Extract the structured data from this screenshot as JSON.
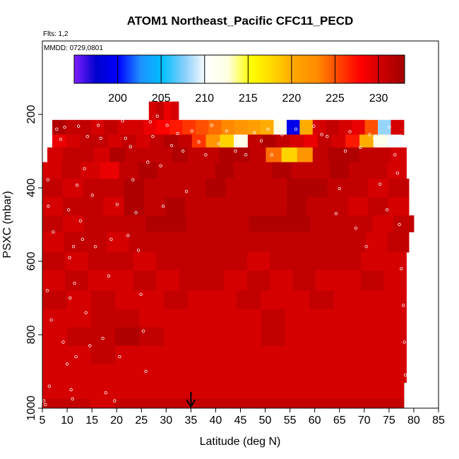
{
  "chart_data": {
    "type": "heatmap",
    "title": "ATOM1 Northeast_Pacific CFC11_PECD",
    "subtitle_flights": "Flts: 1,2",
    "subtitle_dates": "MMDD: 0729,0801",
    "xlabel": "Latitude (deg N)",
    "ylabel": "PSXC (mbar)",
    "xlim": [
      5,
      85
    ],
    "ylim": [
      1000,
      0
    ],
    "x_ticks": [
      5,
      10,
      15,
      20,
      25,
      30,
      35,
      40,
      45,
      50,
      55,
      60,
      65,
      70,
      75,
      80,
      85
    ],
    "y_ticks": [
      200,
      400,
      600,
      800,
      1000
    ],
    "colorbar": {
      "range": [
        195,
        233
      ],
      "ticks": [
        200,
        205,
        210,
        215,
        220,
        225,
        230
      ],
      "colors": [
        "#7f1fff",
        "#0000cd",
        "#0000ff",
        "#1e90ff",
        "#00bfff",
        "#87cefa",
        "#ffffff",
        "#ffffe0",
        "#ffff00",
        "#ffd700",
        "#ffa500",
        "#ff8c00",
        "#ff4500",
        "#ff0000",
        "#cc0000",
        "#a00000"
      ]
    },
    "marker_latitude": 35,
    "layers": [
      {
        "p_top": 165,
        "p_bot": 215,
        "lat_min": 26.5,
        "lat_max": 32.5,
        "values": [
          230,
          231,
          229,
          230
        ]
      },
      {
        "p_top": 215,
        "p_bot": 255,
        "lat_min": 7,
        "lat_max": 78,
        "values": [
          232,
          231,
          231,
          230,
          231,
          230,
          230,
          229,
          228,
          227,
          226,
          225,
          224,
          223,
          222,
          221,
          220,
          212,
          199,
          220,
          230,
          231,
          230,
          229,
          225,
          208,
          230
        ]
      },
      {
        "p_top": 255,
        "p_bot": 290,
        "lat_min": 7,
        "lat_max": 77.5,
        "values": [
          229,
          230,
          231,
          231,
          230,
          231,
          230,
          231,
          232,
          231,
          226,
          222,
          218,
          212,
          231,
          232,
          231,
          230,
          229,
          231,
          230,
          227,
          220,
          212,
          210
        ]
      },
      {
        "p_top": 290,
        "p_bot": 330,
        "lat_min": 6,
        "lat_max": 78.5,
        "values": [
          230,
          231,
          231,
          230,
          232,
          231,
          231,
          231,
          232,
          231,
          231,
          232,
          232,
          231,
          224,
          218,
          222,
          231,
          232,
          232,
          231,
          231,
          230
        ]
      },
      {
        "p_top": 330,
        "p_bot": 375,
        "lat_min": 5,
        "lat_max": 78.5,
        "values": [
          230,
          231,
          230,
          229,
          231,
          232,
          231,
          231,
          231,
          232,
          231,
          231,
          232,
          231,
          231,
          232,
          231,
          231,
          230
        ]
      },
      {
        "p_top": 375,
        "p_bot": 425,
        "lat_min": 5,
        "lat_max": 79,
        "values": [
          231,
          230,
          231,
          231,
          232,
          231,
          231,
          231,
          232,
          231,
          231,
          231,
          232,
          232,
          231,
          231,
          230,
          231
        ]
      },
      {
        "p_top": 425,
        "p_bot": 475,
        "lat_min": 5,
        "lat_max": 79,
        "values": [
          230,
          231,
          231,
          230,
          232,
          231,
          232,
          231,
          231,
          231,
          231,
          231,
          232,
          231,
          231,
          230,
          231,
          230
        ]
      },
      {
        "p_top": 475,
        "p_bot": 520,
        "lat_min": 5,
        "lat_max": 80,
        "values": [
          231,
          230,
          231,
          231,
          231,
          232,
          232,
          231,
          231,
          231,
          232,
          232,
          232,
          231,
          231,
          231,
          230,
          231
        ]
      },
      {
        "p_top": 520,
        "p_bot": 575,
        "lat_min": 5,
        "lat_max": 79,
        "values": [
          230,
          231,
          231,
          230,
          231,
          231,
          231,
          231,
          231,
          231,
          231,
          231,
          231,
          231,
          231,
          230,
          231
        ]
      },
      {
        "p_top": 575,
        "p_bot": 625,
        "lat_min": 5,
        "lat_max": 78.5,
        "values": [
          231,
          230,
          231,
          231,
          230,
          231,
          231,
          231,
          231,
          230,
          231,
          231,
          231,
          231,
          230,
          230
        ]
      },
      {
        "p_top": 625,
        "p_bot": 680,
        "lat_min": 5,
        "lat_max": 78.5,
        "values": [
          230,
          231,
          230,
          230,
          231,
          230,
          231,
          231,
          230,
          231,
          230,
          231,
          230,
          230,
          231,
          230
        ]
      },
      {
        "p_top": 680,
        "p_bot": 730,
        "lat_min": 5,
        "lat_max": 78.5,
        "values": [
          231,
          230,
          231,
          230,
          230,
          231,
          230,
          230,
          231,
          230,
          230,
          231,
          230,
          230,
          230
        ]
      },
      {
        "p_top": 730,
        "p_bot": 780,
        "lat_min": 5,
        "lat_max": 78.5,
        "values": [
          230,
          230,
          231,
          231,
          230,
          230,
          230,
          230,
          230,
          231,
          230,
          230,
          230,
          230,
          230
        ]
      },
      {
        "p_top": 780,
        "p_bot": 830,
        "lat_min": 5,
        "lat_max": 78.5,
        "values": [
          230,
          231,
          231,
          232,
          231,
          230,
          230,
          230,
          230,
          231,
          230,
          230,
          230,
          230,
          230
        ]
      },
      {
        "p_top": 830,
        "p_bot": 880,
        "lat_min": 5,
        "lat_max": 78.5,
        "values": [
          230,
          230,
          231,
          230,
          230,
          230,
          230,
          230,
          230,
          230,
          230,
          230,
          230,
          230,
          230
        ]
      },
      {
        "p_top": 880,
        "p_bot": 930,
        "lat_min": 5,
        "lat_max": 78.5,
        "values": [
          230,
          230,
          230,
          230,
          230,
          230,
          230,
          230,
          230,
          230,
          230,
          230,
          230,
          230,
          230
        ]
      },
      {
        "p_top": 930,
        "p_bot": 975,
        "lat_min": 5,
        "lat_max": 78,
        "values": [
          230,
          230,
          230,
          230,
          230,
          230,
          230,
          230,
          230,
          230,
          230,
          230,
          230,
          230,
          230
        ]
      },
      {
        "p_top": 975,
        "p_bot": 1000,
        "lat_min": 5,
        "lat_max": 78,
        "values": [
          231,
          231,
          230,
          231,
          231,
          231,
          231,
          231,
          231,
          231,
          231,
          231,
          231,
          231,
          231
        ]
      }
    ],
    "sample_points": [
      [
        5.3,
        980
      ],
      [
        5.6,
        990
      ],
      [
        6.0,
        680
      ],
      [
        6.1,
        378
      ],
      [
        6.2,
        450
      ],
      [
        6.4,
        940
      ],
      [
        6.8,
        760
      ],
      [
        7.2,
        520
      ],
      [
        7.9,
        240
      ],
      [
        8.7,
        268
      ],
      [
        9.2,
        820
      ],
      [
        9.5,
        235
      ],
      [
        10.0,
        880
      ],
      [
        10.3,
        460
      ],
      [
        10.5,
        590
      ],
      [
        10.6,
        700
      ],
      [
        10.8,
        950
      ],
      [
        11.1,
        975
      ],
      [
        11.3,
        560
      ],
      [
        11.5,
        660
      ],
      [
        11.8,
        860
      ],
      [
        12.0,
        393
      ],
      [
        12.3,
        232
      ],
      [
        12.7,
        490
      ],
      [
        13.1,
        540
      ],
      [
        13.5,
        348
      ],
      [
        13.8,
        740
      ],
      [
        14.1,
        260
      ],
      [
        14.6,
        830
      ],
      [
        15.1,
        420
      ],
      [
        15.7,
        560
      ],
      [
        16.3,
        230
      ],
      [
        16.8,
        265
      ],
      [
        17.2,
        810
      ],
      [
        17.8,
        958
      ],
      [
        18.4,
        640
      ],
      [
        18.9,
        540
      ],
      [
        19.6,
        980
      ],
      [
        20.1,
        445
      ],
      [
        20.6,
        860
      ],
      [
        21.2,
        218
      ],
      [
        21.8,
        265
      ],
      [
        22.3,
        530
      ],
      [
        22.8,
        288
      ],
      [
        23.3,
        378
      ],
      [
        23.9,
        468
      ],
      [
        24.4,
        570
      ],
      [
        24.9,
        690
      ],
      [
        25.4,
        790
      ],
      [
        25.9,
        900
      ],
      [
        26.3,
        330
      ],
      [
        26.8,
        220
      ],
      [
        27.3,
        260
      ],
      [
        28.2,
        205
      ],
      [
        28.9,
        340
      ],
      [
        29.4,
        450
      ],
      [
        30.2,
        230
      ],
      [
        31.1,
        285
      ],
      [
        32.3,
        252
      ],
      [
        33.4,
        300
      ],
      [
        34.1,
        410
      ],
      [
        35.2,
        245
      ],
      [
        36.6,
        275
      ],
      [
        38.0,
        310
      ],
      [
        39.2,
        230
      ],
      [
        40.6,
        280
      ],
      [
        42.2,
        245
      ],
      [
        44.0,
        300
      ],
      [
        46.1,
        310
      ],
      [
        47.8,
        250
      ],
      [
        49.2,
        272
      ],
      [
        50.6,
        240
      ],
      [
        51.3,
        310
      ],
      [
        53.4,
        255
      ],
      [
        56.2,
        240
      ],
      [
        59.8,
        232
      ],
      [
        61.4,
        255
      ],
      [
        62.5,
        260
      ],
      [
        64.3,
        470
      ],
      [
        65.0,
        402
      ],
      [
        66.2,
        300
      ],
      [
        67.1,
        247
      ],
      [
        68.3,
        510
      ],
      [
        69.2,
        290
      ],
      [
        70.4,
        560
      ],
      [
        71.1,
        255
      ],
      [
        72.0,
        265
      ],
      [
        73.2,
        390
      ],
      [
        74.1,
        280
      ],
      [
        74.6,
        460
      ],
      [
        75.1,
        235
      ],
      [
        76.2,
        310
      ],
      [
        76.7,
        360
      ],
      [
        77.1,
        500
      ],
      [
        77.5,
        620
      ],
      [
        77.9,
        720
      ],
      [
        78.1,
        820
      ],
      [
        78.3,
        910
      ],
      [
        78.5,
        960
      ],
      [
        78.6,
        970
      ]
    ]
  }
}
